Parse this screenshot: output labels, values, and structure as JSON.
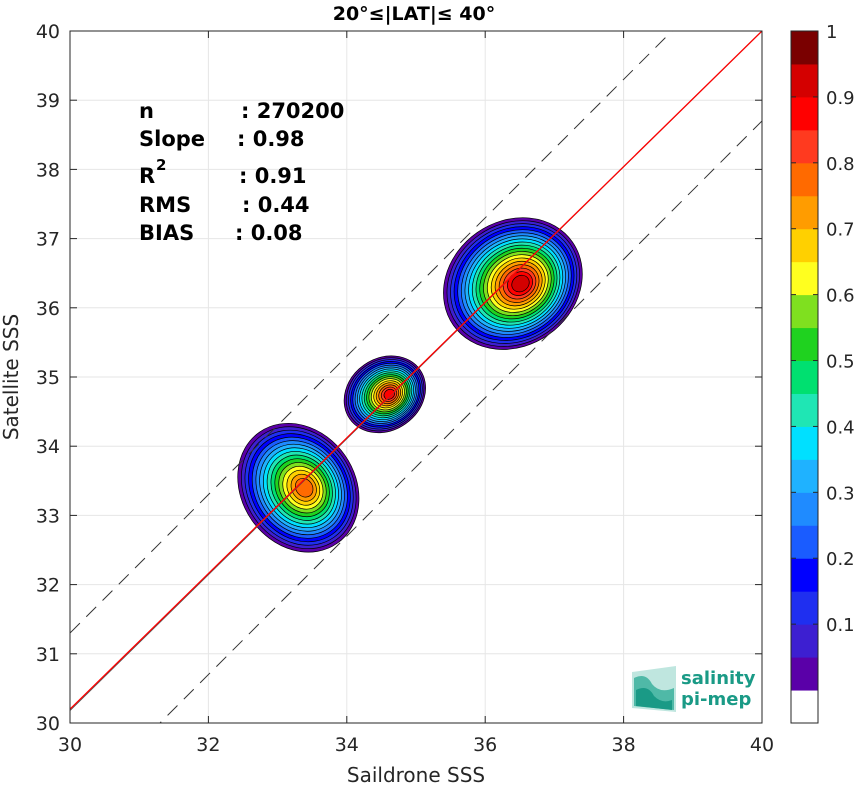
{
  "chart_data": {
    "type": "heatmap",
    "title": "20°≤|LAT|≤ 40°",
    "xlabel": "Saildrone SSS",
    "ylabel": "Satellite SSS",
    "xlim": [
      30,
      40
    ],
    "ylim": [
      30,
      40
    ],
    "xticks": [
      "30",
      "32",
      "34",
      "36",
      "38",
      "40"
    ],
    "yticks": [
      "30",
      "31",
      "32",
      "33",
      "34",
      "35",
      "36",
      "37",
      "38",
      "39",
      "40"
    ],
    "grid": true,
    "stats": {
      "n_label": "n",
      "n_value": ": 270200",
      "slope_label": "Slope",
      "slope_value": ": 0.98",
      "r2_label": "R",
      "r2_sup": "2",
      "r2_value": ": 0.91",
      "rms_label": "RMS",
      "rms_value": ": 0.44",
      "bias_label": "BIAS",
      "bias_value": ": 0.08"
    },
    "lines": {
      "identity": {
        "slope": 1,
        "intercept": 0,
        "color": "#555555"
      },
      "fit": {
        "slope": 0.98,
        "color": "#ff0000"
      },
      "bounds_offset": 1.3
    },
    "clusters": [
      {
        "cx": 33.3,
        "cy": 33.4,
        "rx": 0.82,
        "ry": 0.98,
        "peak": 0.8
      },
      {
        "cx": 34.55,
        "cy": 34.75,
        "rx": 0.62,
        "ry": 0.52,
        "peak": 0.9
      },
      {
        "cx": 36.4,
        "cy": 36.35,
        "rx": 1.05,
        "ry": 0.9,
        "peak": 0.95
      }
    ],
    "colorbar": {
      "min": 0,
      "max": 1,
      "ticks": [
        "0.1",
        "0.2",
        "0.3",
        "0.4",
        "0.5",
        "0.6",
        "0.7",
        "0.8",
        "0.9",
        "1"
      ],
      "colors": [
        "#ffffff",
        "#5a00a8",
        "#3d1fd1",
        "#1f2ff0",
        "#0000ff",
        "#1a5cff",
        "#1f8bff",
        "#1fb2ff",
        "#00e0ff",
        "#1fe6b4",
        "#00e070",
        "#1fd21f",
        "#7fe01f",
        "#ffff1f",
        "#ffd000",
        "#ff9c00",
        "#ff6a00",
        "#ff3a1f",
        "#ff0000",
        "#d40000",
        "#7a0000"
      ]
    }
  },
  "logo": {
    "line1": "salinity",
    "line2": "pi-mep"
  }
}
